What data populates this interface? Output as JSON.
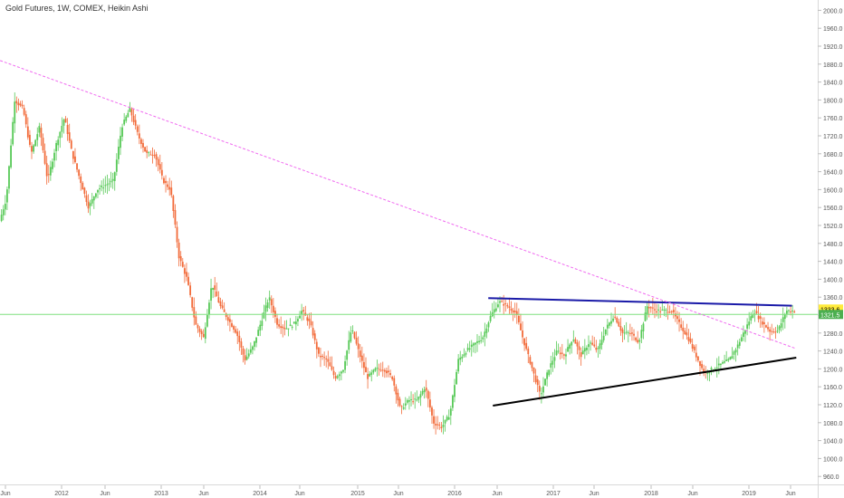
{
  "chart_data": {
    "type": "candlestick",
    "title": "Gold Futures, 1W, COMEX, Heikin Ashi",
    "y_ticks": [
      "2000.0",
      "1960.0",
      "1920.0",
      "1880.0",
      "1840.0",
      "1800.0",
      "1760.0",
      "1720.0",
      "1680.0",
      "1640.0",
      "1600.0",
      "1560.0",
      "1520.0",
      "1480.0",
      "1440.0",
      "1400.0",
      "1360.0",
      "1320.0",
      "1280.0",
      "1240.0",
      "1200.0",
      "1160.0",
      "1120.0",
      "1080.0",
      "1040.0",
      "1000.0",
      "960.0"
    ],
    "ylim": [
      940,
      2010
    ],
    "x_ticks": [
      "Jun",
      "2012",
      "Jun",
      "2013",
      "Jun",
      "2014",
      "Jun",
      "2015",
      "Jun",
      "2016",
      "Jun",
      "2017",
      "Jun",
      "2018",
      "Jun",
      "2019",
      "Jun"
    ],
    "price_labels": [
      {
        "text": "1333.6",
        "value": 1333.6,
        "color": "#ffeb3b"
      },
      {
        "text": "1321.5",
        "value": 1321.5,
        "color": "#4caf50"
      }
    ],
    "horizontal_line": {
      "value": 1321.5,
      "color": "#7ee07e"
    },
    "price_path": [
      [
        "2011-06-01",
        1520
      ],
      [
        "2011-07-01",
        1580
      ],
      [
        "2011-08-01",
        1800
      ],
      [
        "2011-09-01",
        1780
      ],
      [
        "2011-10-01",
        1680
      ],
      [
        "2011-11-01",
        1740
      ],
      [
        "2011-12-01",
        1620
      ],
      [
        "2012-01-01",
        1700
      ],
      [
        "2012-02-01",
        1760
      ],
      [
        "2012-03-01",
        1680
      ],
      [
        "2012-05-01",
        1560
      ],
      [
        "2012-06-01",
        1600
      ],
      [
        "2012-08-01",
        1620
      ],
      [
        "2012-09-01",
        1740
      ],
      [
        "2012-10-01",
        1780
      ],
      [
        "2012-11-01",
        1720
      ],
      [
        "2012-12-01",
        1680
      ],
      [
        "2013-01-01",
        1680
      ],
      [
        "2013-02-01",
        1620
      ],
      [
        "2013-03-01",
        1600
      ],
      [
        "2013-04-01",
        1450
      ],
      [
        "2013-05-01",
        1400
      ],
      [
        "2013-06-01",
        1300
      ],
      [
        "2013-07-01",
        1270
      ],
      [
        "2013-08-01",
        1390
      ],
      [
        "2013-09-01",
        1340
      ],
      [
        "2013-10-01",
        1310
      ],
      [
        "2013-11-01",
        1280
      ],
      [
        "2013-12-01",
        1220
      ],
      [
        "2014-01-01",
        1250
      ],
      [
        "2014-03-01",
        1360
      ],
      [
        "2014-04-01",
        1300
      ],
      [
        "2014-05-01",
        1290
      ],
      [
        "2014-06-01",
        1300
      ],
      [
        "2014-07-01",
        1330
      ],
      [
        "2014-08-01",
        1300
      ],
      [
        "2014-09-01",
        1230
      ],
      [
        "2014-10-01",
        1220
      ],
      [
        "2014-11-01",
        1180
      ],
      [
        "2014-12-01",
        1200
      ],
      [
        "2015-01-01",
        1290
      ],
      [
        "2015-02-01",
        1230
      ],
      [
        "2015-03-01",
        1180
      ],
      [
        "2015-04-01",
        1200
      ],
      [
        "2015-05-01",
        1200
      ],
      [
        "2015-06-01",
        1180
      ],
      [
        "2015-07-01",
        1110
      ],
      [
        "2015-08-01",
        1130
      ],
      [
        "2015-09-01",
        1130
      ],
      [
        "2015-10-01",
        1160
      ],
      [
        "2015-11-01",
        1080
      ],
      [
        "2015-12-01",
        1070
      ],
      [
        "2016-01-01",
        1100
      ],
      [
        "2016-02-01",
        1220
      ],
      [
        "2016-03-01",
        1240
      ],
      [
        "2016-05-01",
        1270
      ],
      [
        "2016-06-01",
        1320
      ],
      [
        "2016-07-01",
        1350
      ],
      [
        "2016-08-01",
        1340
      ],
      [
        "2016-09-01",
        1325
      ],
      [
        "2016-10-01",
        1260
      ],
      [
        "2016-11-01",
        1200
      ],
      [
        "2016-12-01",
        1140
      ],
      [
        "2017-01-01",
        1200
      ],
      [
        "2017-02-01",
        1240
      ],
      [
        "2017-03-01",
        1230
      ],
      [
        "2017-04-01",
        1270
      ],
      [
        "2017-05-01",
        1230
      ],
      [
        "2017-06-01",
        1260
      ],
      [
        "2017-07-01",
        1240
      ],
      [
        "2017-08-01",
        1290
      ],
      [
        "2017-09-01",
        1320
      ],
      [
        "2017-10-01",
        1280
      ],
      [
        "2017-11-01",
        1280
      ],
      [
        "2017-12-01",
        1260
      ],
      [
        "2018-01-01",
        1340
      ],
      [
        "2018-02-01",
        1330
      ],
      [
        "2018-03-01",
        1330
      ],
      [
        "2018-04-01",
        1330
      ],
      [
        "2018-05-01",
        1300
      ],
      [
        "2018-06-01",
        1270
      ],
      [
        "2018-07-01",
        1230
      ],
      [
        "2018-08-01",
        1190
      ],
      [
        "2018-09-01",
        1200
      ],
      [
        "2018-10-01",
        1210
      ],
      [
        "2018-11-01",
        1220
      ],
      [
        "2018-12-01",
        1250
      ],
      [
        "2019-01-01",
        1290
      ],
      [
        "2019-02-01",
        1330
      ],
      [
        "2019-03-01",
        1305
      ],
      [
        "2019-04-01",
        1285
      ],
      [
        "2019-05-01",
        1285
      ],
      [
        "2019-06-01",
        1330
      ]
    ],
    "trend_lines": [
      {
        "name": "resistance",
        "color": "#1a1aa8",
        "style": "solid",
        "from": [
          "2016-05-15",
          1358
        ],
        "to": [
          "2019-06-15",
          1341
        ]
      },
      {
        "name": "support",
        "color": "#000000",
        "style": "solid",
        "from": [
          "2016-06-01",
          1118
        ],
        "to": [
          "2019-07-01",
          1225
        ]
      },
      {
        "name": "down-trend",
        "color": "#f06af0",
        "style": "dashed",
        "from": [
          "2011-06-01",
          1888
        ],
        "to": [
          "2019-07-01",
          1245
        ]
      }
    ],
    "candle_colors": {
      "up": "#57c957",
      "down": "#f26b3a"
    },
    "grid": false
  }
}
